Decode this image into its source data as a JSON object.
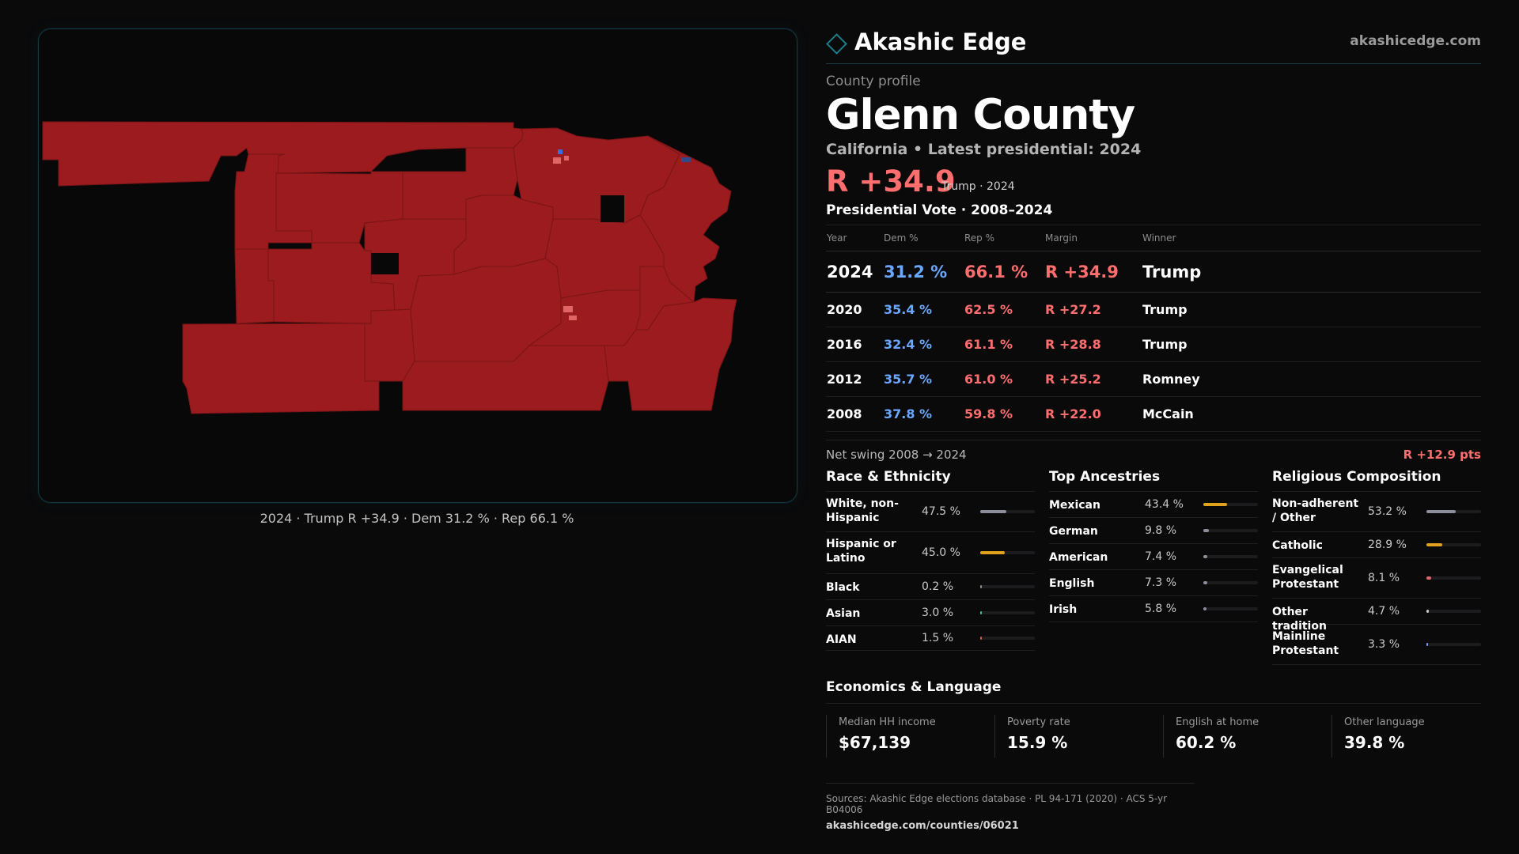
{
  "brand": {
    "name": "Akashic Edge",
    "url": "akashicedge.com",
    "accent": "#1a7f8a"
  },
  "profile": {
    "kicker": "County profile",
    "county": "Glenn County",
    "subtitle": "California • Latest presidential: 2024",
    "margin": "R +34.9",
    "margin_note": "Trump · 2024"
  },
  "map": {
    "caption": "2024 · Trump R +34.9 · Dem 31.2 % · Rep 66.1 %",
    "colors": {
      "rep": "#9b1b1e",
      "rep_light": "#e06565",
      "dem": "#3a6fd8",
      "border": "#7a1416"
    }
  },
  "votes": {
    "heading": "Presidential Vote · 2008–2024",
    "columns": [
      "Year",
      "Dem %",
      "Rep %",
      "Margin",
      "Winner"
    ],
    "rows": [
      {
        "year": "2024",
        "dem": "31.2 %",
        "rep": "66.1 %",
        "margin": "R +34.9",
        "winner": "Trump"
      },
      {
        "year": "2020",
        "dem": "35.4 %",
        "rep": "62.5 %",
        "margin": "R +27.2",
        "winner": "Trump"
      },
      {
        "year": "2016",
        "dem": "32.4 %",
        "rep": "61.1 %",
        "margin": "R +28.8",
        "winner": "Trump"
      },
      {
        "year": "2012",
        "dem": "35.7 %",
        "rep": "61.0 %",
        "margin": "R +25.2",
        "winner": "Romney"
      },
      {
        "year": "2008",
        "dem": "37.8 %",
        "rep": "59.8 %",
        "margin": "R +22.0",
        "winner": "McCain"
      }
    ],
    "swing_label": "Net swing 2008 → 2024",
    "swing_value": "R +12.9 pts"
  },
  "race": {
    "heading": "Race & Ethnicity",
    "items": [
      {
        "label": "White, non-Hispanic",
        "value": "47.5 %",
        "frac": 0.475,
        "color": "#8a8f9b"
      },
      {
        "label": "Hispanic or Latino",
        "value": "45.0 %",
        "frac": 0.45,
        "color": "#e0a21c"
      },
      {
        "label": "Black",
        "value": "0.2 %",
        "frac": 0.002,
        "color": "#8a8f9b"
      },
      {
        "label": "Asian",
        "value": "3.0 %",
        "frac": 0.03,
        "color": "#3fbf9f"
      },
      {
        "label": "AIAN",
        "value": "1.5 %",
        "frac": 0.015,
        "color": "#d0603a"
      }
    ]
  },
  "ancestry": {
    "heading": "Top Ancestries",
    "items": [
      {
        "label": "Mexican",
        "value": "43.4 %",
        "frac": 0.434,
        "color": "#e0a21c"
      },
      {
        "label": "German",
        "value": "9.8 %",
        "frac": 0.098,
        "color": "#8a8f9b"
      },
      {
        "label": "American",
        "value": "7.4 %",
        "frac": 0.074,
        "color": "#8a8f9b"
      },
      {
        "label": "English",
        "value": "7.3 %",
        "frac": 0.073,
        "color": "#8a8f9b"
      },
      {
        "label": "Irish",
        "value": "5.8 %",
        "frac": 0.058,
        "color": "#8a8f9b"
      }
    ]
  },
  "religion": {
    "heading": "Religious Composition",
    "items": [
      {
        "label": "Non-adherent / Other",
        "value": "53.2 %",
        "frac": 0.532,
        "color": "#8a8f9b"
      },
      {
        "label": "Catholic",
        "value": "28.9 %",
        "frac": 0.289,
        "color": "#e0a21c"
      },
      {
        "label": "Evangelical Protestant",
        "value": "8.1 %",
        "frac": 0.081,
        "color": "#e06565"
      },
      {
        "label": "Other tradition",
        "value": "4.7 %",
        "frac": 0.047,
        "color": "#c9c9c9"
      },
      {
        "label": "Mainline Protestant",
        "value": "3.3 %",
        "frac": 0.033,
        "color": "#6aa8ff"
      }
    ]
  },
  "economics": {
    "heading": "Economics & Language",
    "cards": [
      {
        "label": "Median HH income",
        "value": "$67,139"
      },
      {
        "label": "Poverty rate",
        "value": "15.9 %"
      },
      {
        "label": "English at home",
        "value": "60.2 %"
      },
      {
        "label": "Other language",
        "value": "39.8 %"
      }
    ]
  },
  "sources": {
    "line": "Sources: Akashic Edge elections database · PL 94-171 (2020) · ACS 5-yr B04006",
    "link": "akashicedge.com/counties/06021"
  }
}
